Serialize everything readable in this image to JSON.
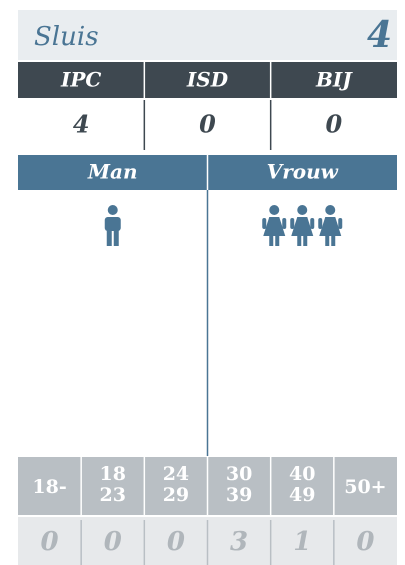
{
  "header": {
    "title": "Sluis",
    "total": "4"
  },
  "parties": [
    {
      "name": "IPC",
      "value": "4"
    },
    {
      "name": "ISD",
      "value": "0"
    },
    {
      "name": "BIJ",
      "value": "0"
    }
  ],
  "gender": [
    {
      "label": "Man",
      "count": 1
    },
    {
      "label": "Vrouw",
      "count": 3
    }
  ],
  "ages": [
    {
      "lines": [
        "18-"
      ],
      "value": "0"
    },
    {
      "lines": [
        "18",
        "23"
      ],
      "value": "0"
    },
    {
      "lines": [
        "24",
        "29"
      ],
      "value": "0"
    },
    {
      "lines": [
        "30",
        "39"
      ],
      "value": "3"
    },
    {
      "lines": [
        "40",
        "49"
      ],
      "value": "1"
    },
    {
      "lines": [
        "50+"
      ],
      "value": "0"
    }
  ]
}
